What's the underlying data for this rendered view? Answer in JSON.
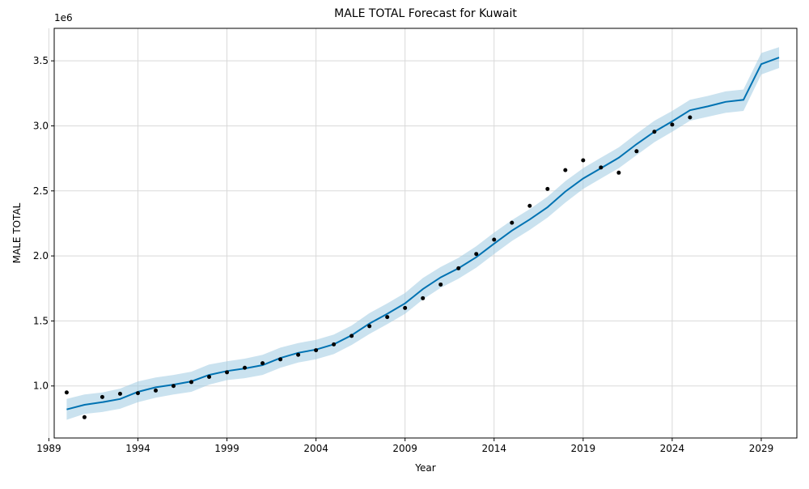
{
  "chart_data": {
    "type": "line",
    "title": "MALE TOTAL Forecast for Kuwait",
    "xlabel": "Year",
    "ylabel": "MALE TOTAL",
    "y_offset_label": "1e6",
    "xlim": [
      1989.3,
      2031.0
    ],
    "ylim": [
      0.6,
      3.75
    ],
    "x_ticks": [
      1989,
      1994,
      1999,
      2004,
      2009,
      2014,
      2019,
      2024,
      2029
    ],
    "y_ticks": [
      1.0,
      1.5,
      2.0,
      2.5,
      3.0,
      3.5
    ],
    "y_tick_labels": [
      "1.0",
      "1.5",
      "2.0",
      "2.5",
      "3.0",
      "3.5"
    ],
    "grid": true,
    "colors": {
      "forecast": "#0072b2",
      "band": "#9ecae1",
      "observed": "#000000",
      "grid": "#d9d9d9"
    },
    "series": [
      {
        "role": "forecast",
        "x": [
          1990,
          1991,
          1992,
          1993,
          1994,
          1995,
          1996,
          1997,
          1998,
          1999,
          2000,
          2001,
          2002,
          2003,
          2004,
          2005,
          2006,
          2007,
          2008,
          2009,
          2010,
          2011,
          2012,
          2013,
          2014,
          2015,
          2016,
          2017,
          2018,
          2019,
          2020,
          2021,
          2022,
          2023,
          2024,
          2025,
          2026,
          2027,
          2028,
          2029,
          2030
        ],
        "values": [
          0.82,
          0.855,
          0.875,
          0.9,
          0.955,
          0.99,
          1.01,
          1.035,
          1.085,
          1.115,
          1.135,
          1.16,
          1.215,
          1.255,
          1.28,
          1.32,
          1.39,
          1.48,
          1.555,
          1.635,
          1.745,
          1.835,
          1.905,
          1.99,
          2.095,
          2.195,
          2.28,
          2.375,
          2.495,
          2.595,
          2.675,
          2.755,
          2.86,
          2.955,
          3.035,
          3.12,
          3.15,
          3.185,
          3.2,
          3.475,
          3.525
        ],
        "lower": [
          0.74,
          0.785,
          0.8,
          0.825,
          0.875,
          0.91,
          0.935,
          0.955,
          1.01,
          1.045,
          1.06,
          1.085,
          1.14,
          1.18,
          1.205,
          1.245,
          1.315,
          1.4,
          1.475,
          1.555,
          1.665,
          1.755,
          1.825,
          1.91,
          2.015,
          2.115,
          2.2,
          2.295,
          2.41,
          2.515,
          2.595,
          2.675,
          2.775,
          2.875,
          2.955,
          3.04,
          3.07,
          3.1,
          3.115,
          3.395,
          3.445
        ],
        "upper": [
          0.9,
          0.935,
          0.95,
          0.98,
          1.035,
          1.065,
          1.085,
          1.11,
          1.165,
          1.19,
          1.21,
          1.24,
          1.295,
          1.33,
          1.355,
          1.395,
          1.465,
          1.56,
          1.635,
          1.715,
          1.83,
          1.915,
          1.985,
          2.075,
          2.18,
          2.275,
          2.36,
          2.455,
          2.575,
          2.675,
          2.755,
          2.835,
          2.94,
          3.04,
          3.115,
          3.2,
          3.23,
          3.265,
          3.28,
          3.56,
          3.605
        ]
      },
      {
        "role": "observed",
        "x": [
          1990,
          1991,
          1992,
          1993,
          1994,
          1995,
          1996,
          1997,
          1998,
          1999,
          2000,
          2001,
          2002,
          2003,
          2004,
          2005,
          2006,
          2007,
          2008,
          2009,
          2010,
          2011,
          2012,
          2013,
          2014,
          2015,
          2016,
          2017,
          2018,
          2019,
          2020,
          2021,
          2022,
          2023,
          2024,
          2025
        ],
        "values": [
          0.95,
          0.76,
          0.915,
          0.94,
          0.945,
          0.965,
          1.0,
          1.03,
          1.07,
          1.105,
          1.14,
          1.175,
          1.205,
          1.24,
          1.275,
          1.32,
          1.385,
          1.46,
          1.53,
          1.6,
          1.675,
          1.78,
          1.905,
          2.015,
          2.125,
          2.255,
          2.385,
          2.515,
          2.66,
          2.735,
          2.68,
          2.64,
          2.805,
          2.955,
          3.01,
          3.065
        ]
      }
    ]
  }
}
